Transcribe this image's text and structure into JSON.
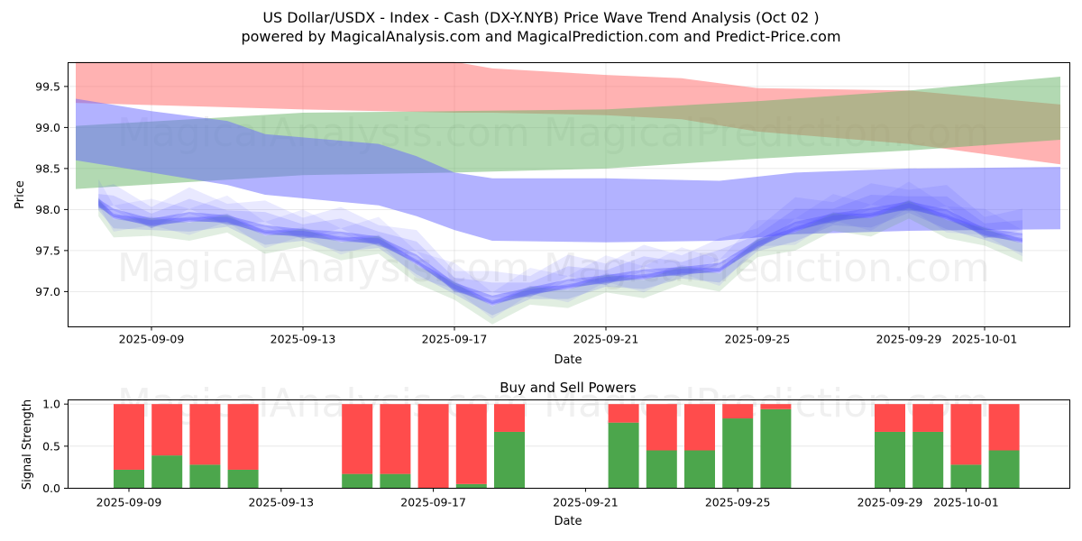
{
  "title_line1": "US Dollar/USDX - Index - Cash (DX-Y.NYB) Price Wave Trend Analysis (Oct 02 )",
  "title_line2": "powered by MagicalAnalysis.com and MagicalPrediction.com and Predict-Price.com",
  "watermarks": [
    "MagicalAnalysis.com",
    "MagicalPrediction.com"
  ],
  "colors": {
    "band_red": "#ff6666",
    "band_green": "#66b366",
    "band_blue": "#6666ff",
    "wave_blue": "#4d4dff",
    "wave_green": "#5aa05a",
    "buy": "#4ca64c",
    "sell": "#ff4c4c"
  },
  "chart_data": [
    {
      "type": "area",
      "title": "",
      "xlabel": "Date",
      "ylabel": "Price",
      "xlim": [
        "2025-09-06.8",
        "2025-10-03.3"
      ],
      "ylim": [
        96.57,
        99.79
      ],
      "grid": true,
      "x_ticks": [
        "2025-09-09",
        "2025-09-13",
        "2025-09-17",
        "2025-09-21",
        "2025-09-25",
        "2025-09-29",
        "2025-10-01"
      ],
      "y_ticks": [
        "97.0",
        "97.5",
        "98.0",
        "98.5",
        "99.0",
        "99.5"
      ],
      "bands": [
        {
          "name": "red-band",
          "color": "band_red",
          "points": [
            [
              "2025-09-07",
              99.3,
              99.8
            ],
            [
              "2025-09-13",
              99.22,
              99.8
            ],
            [
              "2025-09-17",
              99.18,
              99.8
            ],
            [
              "2025-09-18",
              99.18,
              99.72
            ],
            [
              "2025-09-21",
              99.15,
              99.64
            ],
            [
              "2025-09-23",
              99.1,
              99.6
            ],
            [
              "2025-09-25",
              98.95,
              99.48
            ],
            [
              "2025-09-29",
              98.8,
              99.45
            ],
            [
              "2025-10-03",
              98.55,
              99.28
            ]
          ]
        },
        {
          "name": "green-band",
          "color": "band_green",
          "points": [
            [
              "2025-09-07",
              98.25,
              99.02
            ],
            [
              "2025-09-13",
              98.42,
              99.18
            ],
            [
              "2025-09-17",
              98.45,
              99.2
            ],
            [
              "2025-09-21",
              98.5,
              99.22
            ],
            [
              "2025-09-25",
              98.62,
              99.32
            ],
            [
              "2025-09-29",
              98.72,
              99.45
            ],
            [
              "2025-10-03",
              98.85,
              99.62
            ]
          ]
        },
        {
          "name": "blue-band",
          "color": "band_blue",
          "points": [
            [
              "2025-09-07",
              98.6,
              99.35
            ],
            [
              "2025-09-09",
              98.45,
              99.2
            ],
            [
              "2025-09-11",
              98.3,
              99.08
            ],
            [
              "2025-09-12",
              98.18,
              98.92
            ],
            [
              "2025-09-15",
              98.05,
              98.8
            ],
            [
              "2025-09-16",
              97.92,
              98.65
            ],
            [
              "2025-09-17",
              97.75,
              98.45
            ],
            [
              "2025-09-18",
              97.62,
              98.38
            ],
            [
              "2025-09-21",
              97.6,
              98.38
            ],
            [
              "2025-09-24",
              97.62,
              98.35
            ],
            [
              "2025-09-26",
              97.7,
              98.45
            ],
            [
              "2025-09-29",
              97.74,
              98.5
            ],
            [
              "2025-10-03",
              97.76,
              98.52
            ]
          ]
        }
      ],
      "wave_center": {
        "name": "price-wave",
        "points": [
          [
            "2025-09-07.6",
            98.08
          ],
          [
            "2025-09-08",
            97.96
          ],
          [
            "2025-09-09",
            97.84
          ],
          [
            "2025-09-10",
            97.92
          ],
          [
            "2025-09-11",
            97.88
          ],
          [
            "2025-09-12",
            97.76
          ],
          [
            "2025-09-13",
            97.71
          ],
          [
            "2025-09-14",
            97.68
          ],
          [
            "2025-09-15",
            97.62
          ],
          [
            "2025-09-16",
            97.4
          ],
          [
            "2025-09-17",
            97.06
          ],
          [
            "2025-09-18",
            96.9
          ],
          [
            "2025-09-19",
            97.0
          ],
          [
            "2025-09-20",
            97.1
          ],
          [
            "2025-09-21",
            97.15
          ],
          [
            "2025-09-22",
            97.22
          ],
          [
            "2025-09-23",
            97.25
          ],
          [
            "2025-09-24",
            97.3
          ],
          [
            "2025-09-25",
            97.58
          ],
          [
            "2025-09-26",
            97.8
          ],
          [
            "2025-09-27",
            97.9
          ],
          [
            "2025-09-28",
            97.97
          ],
          [
            "2025-09-29",
            98.05
          ],
          [
            "2025-09-30",
            97.95
          ],
          [
            "2025-10-01",
            97.72
          ],
          [
            "2025-10-02",
            97.66
          ]
        ]
      }
    },
    {
      "type": "bar",
      "title": "Buy and Sell Powers",
      "xlabel": "Date",
      "ylabel": "Signal Strength",
      "ylim": [
        0,
        1.05
      ],
      "grid": true,
      "x_ticks": [
        "2025-09-09",
        "2025-09-13",
        "2025-09-17",
        "2025-09-21",
        "2025-09-25",
        "2025-09-29",
        "2025-10-01"
      ],
      "y_ticks": [
        "0.0",
        "0.5",
        "1.0"
      ],
      "categories": [
        "2025-09-09",
        "2025-09-10",
        "2025-09-11",
        "2025-09-12",
        "2025-09-15",
        "2025-09-16",
        "2025-09-17",
        "2025-09-18",
        "2025-09-19",
        "2025-09-22",
        "2025-09-23",
        "2025-09-24",
        "2025-09-25",
        "2025-09-26",
        "2025-09-29",
        "2025-09-30",
        "2025-10-01",
        "2025-10-02"
      ],
      "series": [
        {
          "name": "Buy",
          "color": "buy",
          "values": [
            0.22,
            0.39,
            0.28,
            0.22,
            0.17,
            0.17,
            0.0,
            0.05,
            0.67,
            0.78,
            0.45,
            0.45,
            0.83,
            0.94,
            0.67,
            0.67,
            0.28,
            0.45
          ]
        },
        {
          "name": "Sell",
          "color": "sell",
          "values": [
            0.78,
            0.61,
            0.72,
            0.78,
            0.83,
            0.83,
            1.0,
            0.95,
            0.33,
            0.22,
            0.55,
            0.55,
            0.17,
            0.06,
            0.33,
            0.33,
            0.72,
            0.55
          ]
        }
      ]
    }
  ]
}
